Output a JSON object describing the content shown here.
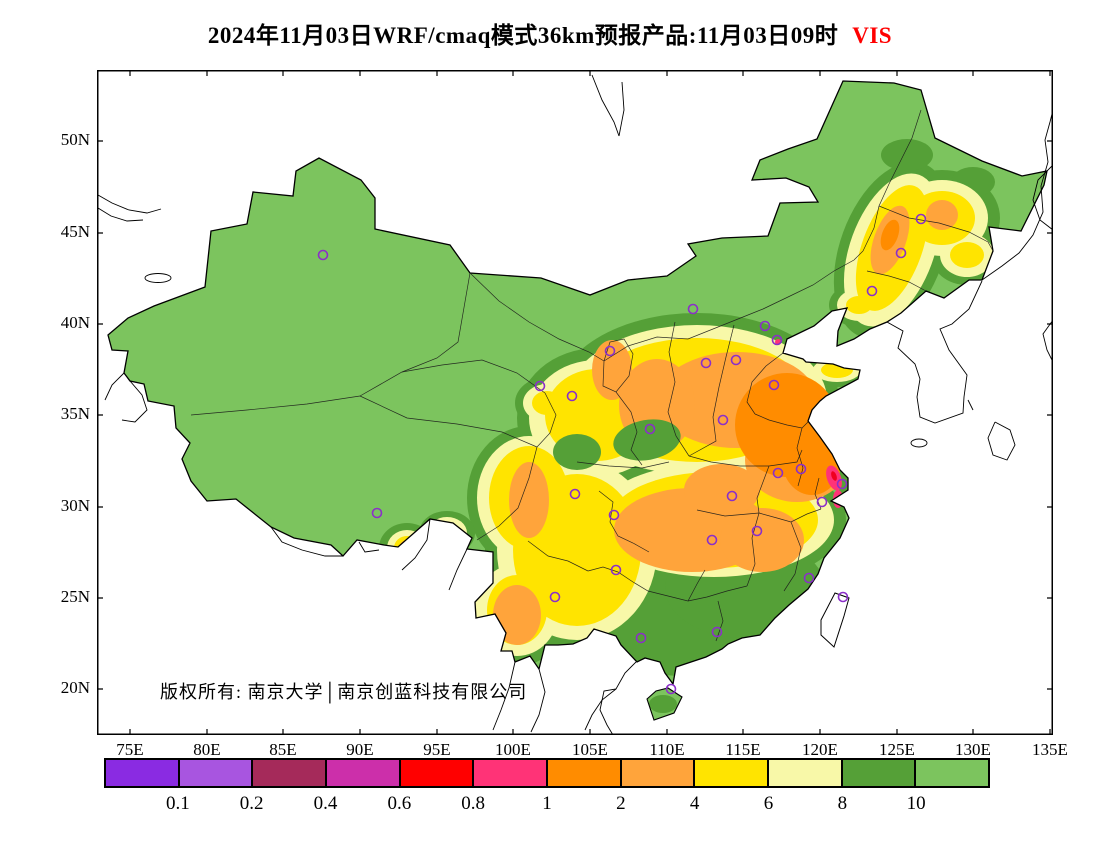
{
  "title": {
    "main": "2024年11月03日WRF/cmaq模式36km预报产品:11月03日09时",
    "vis": "VIS"
  },
  "map": {
    "copyright": "版权所有: 南京大学│南京创蓝科技有限公司",
    "station_marker_color": "#8B2FC9",
    "station_marker_count": 32,
    "land_base_color": "#7CC45E",
    "sea_color": "#FFFFFF"
  },
  "axes": {
    "lat_labels": [
      "50N",
      "45N",
      "40N",
      "35N",
      "30N",
      "25N",
      "20N"
    ],
    "lon_labels": [
      "75E",
      "80E",
      "85E",
      "90E",
      "95E",
      "100E",
      "105E",
      "110E",
      "115E",
      "120E",
      "125E",
      "130E",
      "135E"
    ]
  },
  "legend": {
    "labels": [
      "0.1",
      "0.2",
      "0.4",
      "0.6",
      "0.8",
      "1",
      "2",
      "4",
      "6",
      "8",
      "10"
    ],
    "colors": [
      "#8A2BE2",
      "#A855E0",
      "#A52A5A",
      "#CC2FAA",
      "#FF0000",
      "#FF3377",
      "#FF8C00",
      "#FFA43B",
      "#FFE400",
      "#F8F8A8",
      "#55A037",
      "#7CC45E"
    ]
  },
  "chart_data": {
    "type": "heatmap",
    "title": "2024年11月03日WRF/cmaq模式36km预报产品:11月03日09时 VIS",
    "variable": "VIS",
    "x_ticks": [
      "75E",
      "80E",
      "85E",
      "90E",
      "95E",
      "100E",
      "105E",
      "110E",
      "115E",
      "120E",
      "125E",
      "130E",
      "135E"
    ],
    "y_ticks": [
      "50N",
      "45N",
      "40N",
      "35N",
      "30N",
      "25N",
      "20N"
    ],
    "xlim": [
      "72.8E",
      "135.2E"
    ],
    "ylim": [
      "17.5N",
      "53.9N"
    ],
    "grid": false,
    "legend_position": "bottom",
    "colorbar": {
      "levels": [
        0.1,
        0.2,
        0.4,
        0.6,
        0.8,
        1,
        2,
        4,
        6,
        8,
        10
      ],
      "colors": [
        "#8A2BE2",
        "#A855E0",
        "#A52A5A",
        "#CC2FAA",
        "#FF0000",
        "#FF3377",
        "#FF8C00",
        "#FFA43B",
        "#FFE400",
        "#F8F8A8",
        "#55A037",
        "#7CC45E"
      ]
    },
    "regions_estimated": [
      {
        "region": "Xinjiang, Tibet plateau, Inner Mongolia and most of west / north China",
        "level": ">10"
      },
      {
        "region": "North China Plain (S Hebei, W Shandong, Henan, N Anhui, N Jiangsu)",
        "level": "1-4"
      },
      {
        "region": "S Jiangsu / Shanghai coastal hotspots",
        "level": "0.8-1"
      },
      {
        "region": "Sichuan Basin, Chongqing-Guizhou-Hunan, Hubei, Jiangxi",
        "level": "2-6"
      },
      {
        "region": "Northeast band through Liaoning-Jilin-Heilongjiang",
        "level": "2-8"
      },
      {
        "region": "South China hills (Guangxi, Guangdong, Fujian) and Hainan",
        "level": "8-10"
      },
      {
        "region": "SE Tibet border and W Yunnan patches",
        "level": "2-8"
      }
    ]
  }
}
